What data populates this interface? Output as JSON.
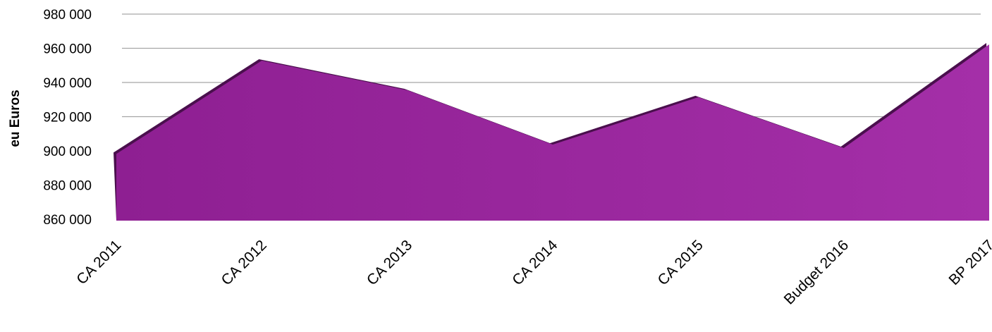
{
  "chart_data": {
    "type": "area",
    "y_label": "eu Euros",
    "categories": [
      "CA 2011",
      "CA 2012",
      "CA 2013",
      "CA 2014",
      "CA 2015",
      "Budget 2016",
      "BP 2017"
    ],
    "values": [
      899000,
      953600,
      936300,
      904500,
      932200,
      902500,
      963100
    ],
    "color": "#9c2aa0",
    "ylim": [
      860000,
      980000
    ],
    "yticks": [
      {
        "value": 860000,
        "label": "860 000"
      },
      {
        "value": 880000,
        "label": "880 000"
      },
      {
        "value": 900000,
        "label": "900 000"
      },
      {
        "value": 920000,
        "label": "920 000"
      },
      {
        "value": 940000,
        "label": "940 000"
      },
      {
        "value": 960000,
        "label": "960 000"
      },
      {
        "value": 980000,
        "label": "980 000"
      }
    ],
    "grid": true
  }
}
